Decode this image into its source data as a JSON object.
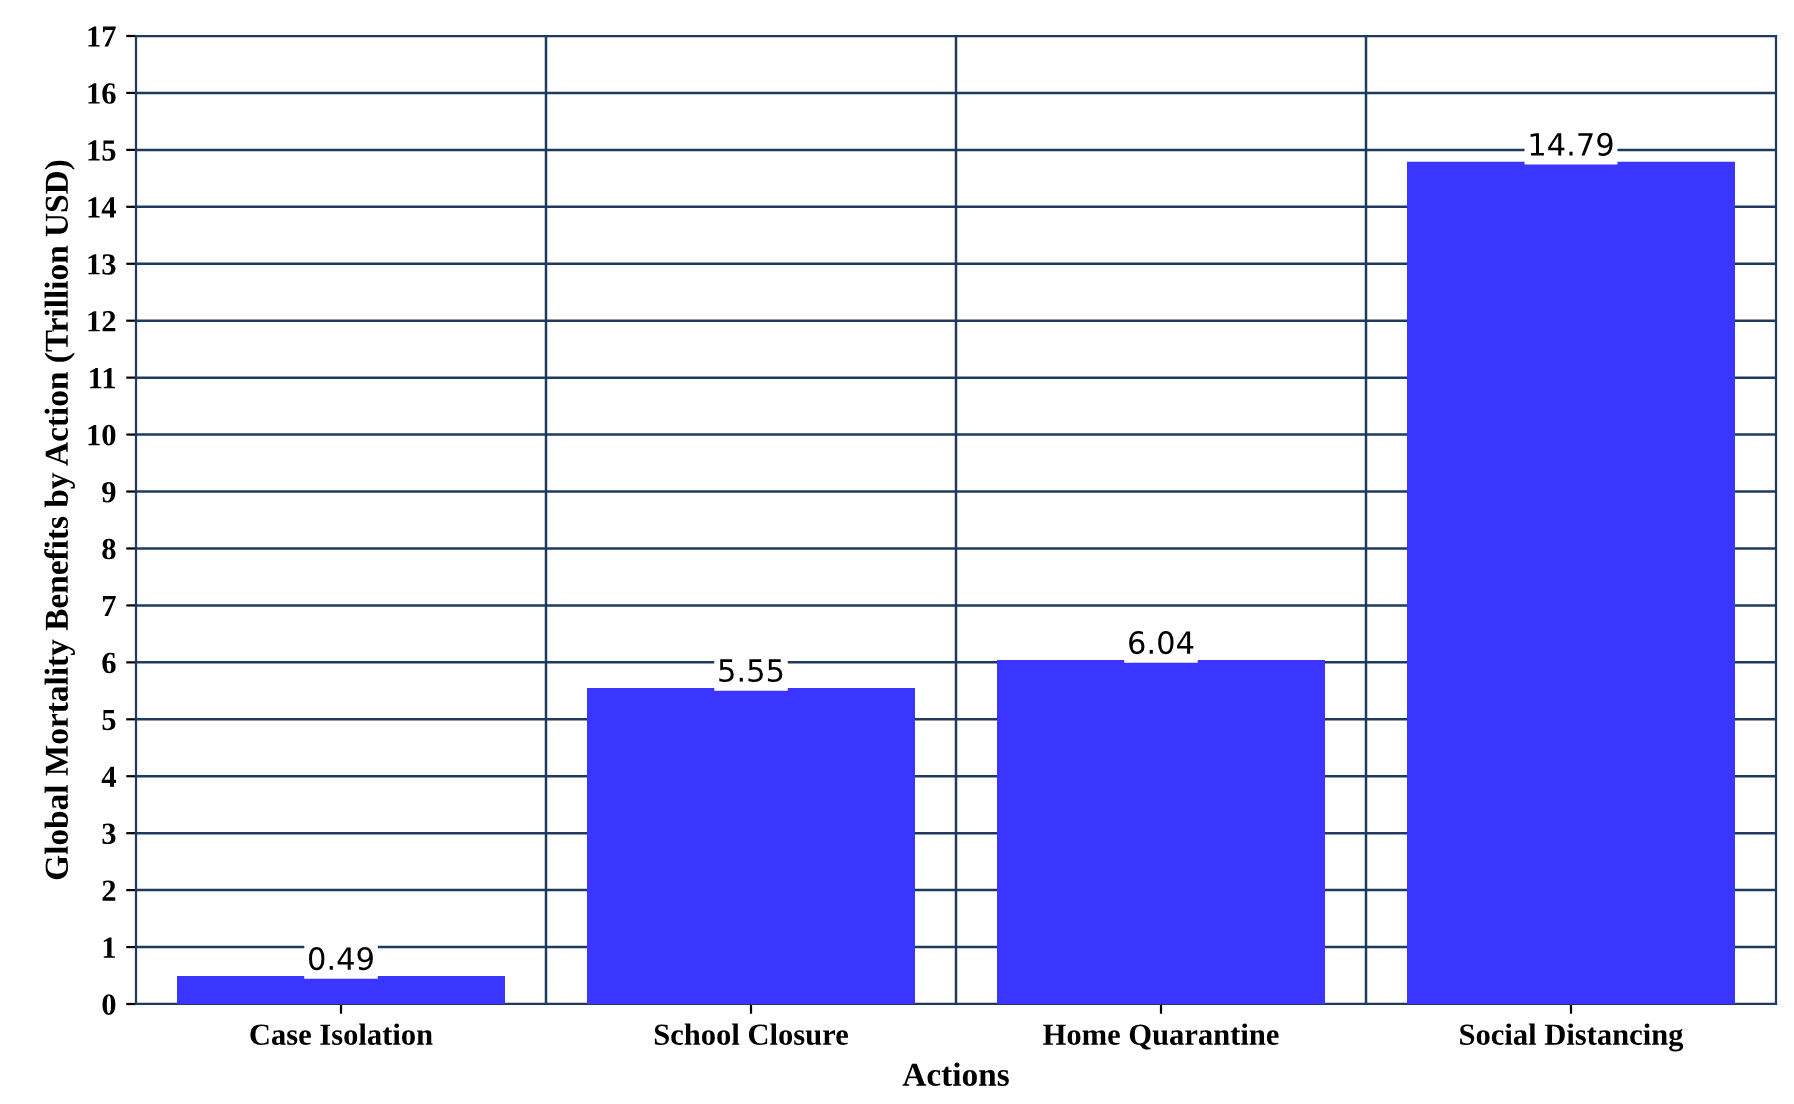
{
  "chart_data": {
    "type": "bar",
    "categories": [
      "Case Isolation",
      "School Closure",
      "Home Quarantine",
      "Social Distancing"
    ],
    "values": [
      0.49,
      5.55,
      6.04,
      14.79
    ],
    "color": "#3a36ff",
    "xlabel": "Actions",
    "ylabel": "Global Mortality Benefits by Action (Trillion USD)",
    "ylim": [
      0,
      17
    ],
    "yticks": [
      0,
      1,
      2,
      3,
      4,
      5,
      6,
      7,
      8,
      9,
      10,
      11,
      12,
      13,
      14,
      15,
      16,
      17
    ],
    "grid": true,
    "data_labels": true
  }
}
